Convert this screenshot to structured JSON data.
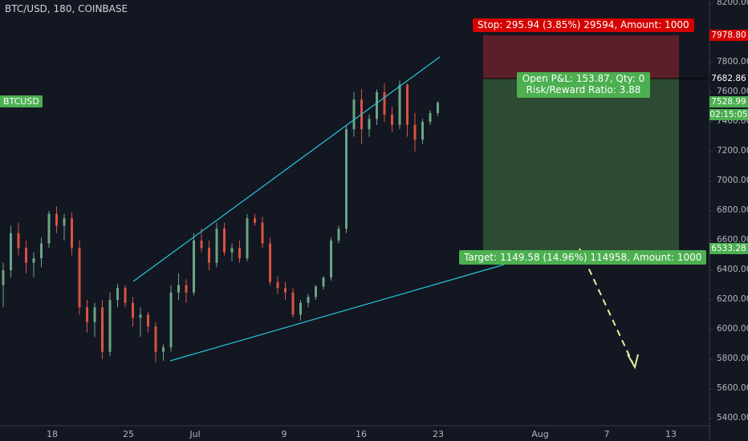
{
  "chart_header": {
    "title": "BTC/USD, 180, COINBASE"
  },
  "symbol_tag": "BTCUSD",
  "price_axis": {
    "ticks": [
      "8200.00",
      "7800.00",
      "7600.00",
      "7400.00",
      "7200.00",
      "7000.00",
      "6800.00",
      "6600.00",
      "6400.00",
      "6200.00",
      "6000.00",
      "5800.00",
      "5600.00",
      "5400.00"
    ],
    "stop_price": "7978.80",
    "entry_price": "7682.86",
    "last_price": "7528.99",
    "countdown": "02:15:05",
    "target_price": "6533.28"
  },
  "time_axis": {
    "ticks": [
      "18",
      "25",
      "Jul",
      "9",
      "16",
      "23",
      "Aug",
      "7",
      "13"
    ]
  },
  "position_tool": {
    "stop_label": "Stop: 295.94 (3.85%) 29594, Amount: 1000",
    "pnl_line1": "Open P&L: 153.87, Qty: 0",
    "pnl_line2": "Risk/Reward Ratio: 3.88",
    "target_label": "Target: 1149.58 (14.96%) 114958, Amount: 1000"
  },
  "colors": {
    "background": "#131722",
    "up_candle": "#6ba583",
    "down_candle": "#d75442",
    "trendline": "#26c6da",
    "projection_arrow": "#e6ee9c",
    "stop_zone": "#5b1f2a",
    "target_zone": "#2c4b32",
    "stop_tag": "#d50000",
    "target_tag": "#4caf50"
  },
  "chart_data": {
    "type": "candlestick",
    "symbol": "BTC/USD",
    "interval": "180",
    "exchange": "COINBASE",
    "y_range": [
      5400,
      8200
    ],
    "candles": [
      [
        6300,
        6450,
        6150,
        6400
      ],
      [
        6400,
        6700,
        6350,
        6650
      ],
      [
        6650,
        6720,
        6500,
        6550
      ],
      [
        6550,
        6600,
        6380,
        6450
      ],
      [
        6450,
        6520,
        6350,
        6480
      ],
      [
        6480,
        6620,
        6420,
        6580
      ],
      [
        6580,
        6800,
        6550,
        6780
      ],
      [
        6780,
        6830,
        6650,
        6700
      ],
      [
        6700,
        6780,
        6600,
        6750
      ],
      [
        6750,
        6790,
        6500,
        6550
      ],
      [
        6550,
        6600,
        6100,
        6150
      ],
      [
        6150,
        6200,
        5980,
        6050
      ],
      [
        6050,
        6180,
        5950,
        6150
      ],
      [
        6150,
        6200,
        5800,
        5850
      ],
      [
        5850,
        6250,
        5820,
        6200
      ],
      [
        6200,
        6310,
        6150,
        6280
      ],
      [
        6280,
        6300,
        6150,
        6180
      ],
      [
        6180,
        6220,
        6020,
        6080
      ],
      [
        6080,
        6150,
        5950,
        6100
      ],
      [
        6100,
        6120,
        5980,
        6020
      ],
      [
        6020,
        6050,
        5780,
        5850
      ],
      [
        5850,
        5900,
        5790,
        5880
      ],
      [
        5880,
        6300,
        5850,
        6250
      ],
      [
        6250,
        6380,
        6200,
        6300
      ],
      [
        6300,
        6340,
        6180,
        6250
      ],
      [
        6250,
        6650,
        6230,
        6600
      ],
      [
        6600,
        6680,
        6520,
        6550
      ],
      [
        6550,
        6600,
        6400,
        6450
      ],
      [
        6450,
        6720,
        6420,
        6680
      ],
      [
        6680,
        6720,
        6500,
        6520
      ],
      [
        6520,
        6580,
        6460,
        6550
      ],
      [
        6550,
        6600,
        6450,
        6480
      ],
      [
        6480,
        6780,
        6460,
        6750
      ],
      [
        6750,
        6780,
        6700,
        6720
      ],
      [
        6720,
        6760,
        6550,
        6580
      ],
      [
        6580,
        6620,
        6300,
        6320
      ],
      [
        6320,
        6360,
        6240,
        6280
      ],
      [
        6280,
        6320,
        6200,
        6250
      ],
      [
        6250,
        6280,
        6080,
        6100
      ],
      [
        6100,
        6200,
        6060,
        6180
      ],
      [
        6180,
        6240,
        6150,
        6220
      ],
      [
        6220,
        6300,
        6200,
        6290
      ],
      [
        6290,
        6360,
        6270,
        6350
      ],
      [
        6350,
        6620,
        6330,
        6600
      ],
      [
        6600,
        6700,
        6580,
        6680
      ],
      [
        6680,
        7380,
        6650,
        7350
      ],
      [
        7350,
        7600,
        7300,
        7550
      ],
      [
        7550,
        7620,
        7250,
        7350
      ],
      [
        7350,
        7450,
        7300,
        7420
      ],
      [
        7420,
        7620,
        7380,
        7600
      ],
      [
        7600,
        7660,
        7400,
        7450
      ],
      [
        7450,
        7500,
        7330,
        7380
      ],
      [
        7380,
        7680,
        7350,
        7650
      ],
      [
        7650,
        7660,
        7300,
        7380
      ],
      [
        7380,
        7460,
        7200,
        7280
      ],
      [
        7280,
        7420,
        7250,
        7400
      ],
      [
        7400,
        7480,
        7380,
        7460
      ],
      [
        7460,
        7540,
        7440,
        7529
      ]
    ]
  }
}
